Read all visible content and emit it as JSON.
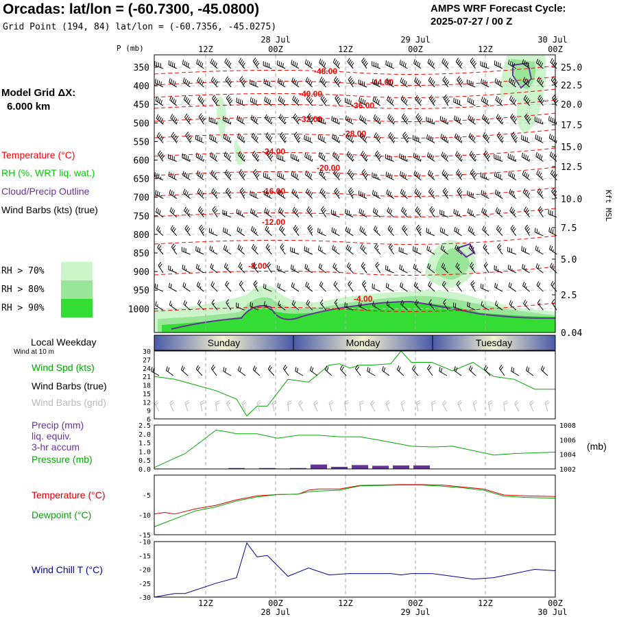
{
  "header": {
    "title": "Orcadas:  lat/lon = (-60.7300, -45.0800)",
    "subtitle": "Grid Point (194, 84) lat/lon = (-60.7356, -45.0275)",
    "cycle_line1": "AMPS WRF Forecast Cycle:",
    "cycle_line2": "2025-07-27 / 00  Z"
  },
  "model_grid": {
    "line1": "Model Grid ΔX:",
    "line2": "6.000 km"
  },
  "legend": {
    "temperature": "Temperature (°C)",
    "rh": "RH (%, WRT liq. wat.)",
    "cloud": "Cloud/Precip Outline",
    "wind": "Wind Barbs (kts) (true)",
    "rh70": "RH > 70%",
    "rh80": "RH > 80%",
    "rh90": "RH > 90%"
  },
  "colors": {
    "temp": "#ff0000",
    "rh": "#00cc00",
    "cloud": "#663399",
    "rh70": "#ccf5cc",
    "rh80": "#99e699",
    "rh90": "#33dd33",
    "grid": "#aaaaaa",
    "chill": "#000099",
    "precip": "#663399"
  },
  "time_axis": {
    "ticks": [
      "12Z",
      "00Z",
      "12Z",
      "00Z",
      "12Z",
      "00Z"
    ],
    "dates": [
      "28 Jul",
      "29 Jul",
      "30 Jul"
    ],
    "days": [
      "Sunday",
      "Monday",
      "Tuesday"
    ]
  },
  "pressure_label": "P (mb)",
  "pressure_levels": [
    "350",
    "400",
    "450",
    "500",
    "550",
    "600",
    "650",
    "700",
    "750",
    "800",
    "850",
    "900",
    "950",
    "1000"
  ],
  "height_axis": {
    "label": "Kft MSL",
    "ticks": [
      "25.0",
      "22.5",
      "20.0",
      "17.5",
      "15.0",
      "12.5",
      "10.0",
      "7.5",
      "5.0",
      "2.5",
      "0.04"
    ]
  },
  "temp_contour_labels": [
    "-48.00",
    "-44.00",
    "-40.00",
    "-36.00",
    "-32.00",
    "-28.00",
    "-24.00",
    "-20.00",
    "-16.00",
    "-12.00",
    "-8.00",
    "-4.00"
  ],
  "panels": {
    "weekday_label": "Local Weekday",
    "wind10m_note": "Wind at 10 m",
    "wind_spd": "Wind Spd (kts)",
    "wind_barbs_true": "Wind Barbs (true)",
    "wind_barbs_grid": "Wind Barbs (grid)",
    "precip_l1": "Precip (mm)",
    "precip_l2": "liq. equiv.",
    "precip_l3": "3-hr accum",
    "pressure": "Pressure (mb)",
    "pressure_unit": "(mb)",
    "temperature": "Temperature (°C)",
    "dewpoint": "Dewpoint (°C)",
    "wind_chill": "Wind Chill T (°C)"
  },
  "chart_data": [
    {
      "type": "line",
      "name": "Wind speed 10 m",
      "ylabel": "Wind Spd (kts)",
      "y_ticks": [
        30,
        27,
        24,
        21,
        18,
        15,
        12,
        9,
        6
      ],
      "ylim": [
        6,
        30
      ],
      "x_hours": [
        0,
        6,
        12,
        18,
        24,
        27,
        30,
        33,
        39,
        45,
        51,
        54,
        57,
        60,
        63,
        69,
        72,
        75,
        81,
        87,
        93,
        99,
        105,
        111,
        117
      ],
      "values": [
        21,
        20,
        18,
        16,
        13,
        7,
        10.5,
        10.5,
        20,
        19,
        25,
        25.5,
        24,
        25,
        25,
        25.5,
        30,
        26,
        26,
        23,
        26,
        21,
        20,
        16.5,
        16.5
      ]
    },
    {
      "type": "bar+line",
      "name": "Precip and Pressure",
      "y_ticks_left": [
        "2.5",
        "2.0",
        "1.5",
        "1.0",
        "0.5",
        "0.0"
      ],
      "ylim_left": [
        0,
        2.5
      ],
      "y_ticks_right": [
        "1008",
        "1006",
        "1004",
        "1002"
      ],
      "ylim_right": [
        1002,
        1008
      ],
      "precip": {
        "x_hours": [
          24,
          33,
          42,
          48,
          54,
          60,
          66,
          72,
          78
        ],
        "values": [
          0.05,
          0.05,
          0.05,
          0.25,
          0.12,
          0.22,
          0.18,
          0.2,
          0.2
        ]
      },
      "pressure": {
        "x_hours": [
          0,
          9,
          18,
          21,
          24,
          30,
          36,
          42,
          48,
          54,
          60,
          66,
          75,
          81,
          87,
          93,
          99,
          105,
          111,
          117
        ],
        "values": [
          1002.2,
          1004.1,
          1007.3,
          1007.1,
          1006.8,
          1006.8,
          1006.2,
          1006.6,
          1006.6,
          1006.4,
          1006.4,
          1005.9,
          1005.1,
          1005.0,
          1005.1,
          1004.5,
          1003.9,
          1004.1,
          1004.2,
          1004.3
        ]
      }
    },
    {
      "type": "line",
      "name": "Temperature and Dewpoint",
      "y_ticks": [
        -5,
        -10,
        -15
      ],
      "ylim": [
        -15,
        0
      ],
      "x_hours": [
        0,
        3,
        6,
        12,
        18,
        24,
        30,
        36,
        42,
        45,
        48,
        54,
        60,
        66,
        72,
        78,
        84,
        90,
        96,
        102,
        108,
        117
      ],
      "series": [
        {
          "name": "Temperature",
          "values": [
            -9.8,
            -9.4,
            -9.8,
            -8.5,
            -7.6,
            -6.2,
            -5.2,
            -4.9,
            -4.8,
            -3.8,
            -3.5,
            -3.5,
            -2.6,
            -2.5,
            -2.4,
            -2.4,
            -2.5,
            -3.0,
            -3.5,
            -5.0,
            -5.2,
            -5.4
          ]
        },
        {
          "name": "Dewpoint",
          "values": [
            -13.0,
            -12.0,
            -11.0,
            -9.0,
            -8.0,
            -6.5,
            -5.5,
            -4.9,
            -4.8,
            -4.2,
            -4.0,
            -3.8,
            -2.7,
            -2.6,
            -2.5,
            -2.5,
            -2.8,
            -3.2,
            -3.8,
            -5.3,
            -5.6,
            -5.8
          ]
        }
      ]
    },
    {
      "type": "line",
      "name": "Wind Chill",
      "y_ticks": [
        -10,
        -15,
        -20,
        -25,
        -30
      ],
      "ylim": [
        -30,
        -10
      ],
      "x_hours": [
        0,
        6,
        9,
        18,
        24,
        27,
        30,
        33,
        39,
        45,
        51,
        57,
        63,
        69,
        72,
        75,
        81,
        87,
        93,
        99,
        105,
        111,
        117
      ],
      "values": [
        -30,
        -28.7,
        -28.7,
        -25,
        -23,
        -10.5,
        -15.5,
        -15,
        -22.5,
        -19.5,
        -22,
        -21.5,
        -21.5,
        -21.5,
        -22,
        -21.5,
        -21.5,
        -22.5,
        -23.5,
        -23,
        -21.5,
        -20,
        -20.5
      ]
    }
  ]
}
